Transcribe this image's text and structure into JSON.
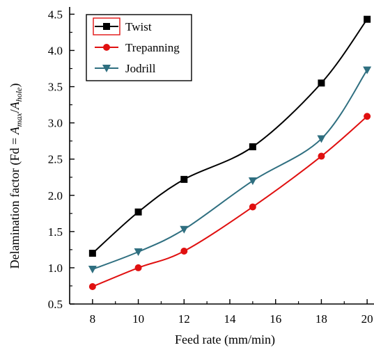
{
  "chart_data": {
    "type": "line",
    "title": "",
    "xlabel": "Feed rate (mm/min)",
    "ylabel": {
      "prefix": "Delamination factor (Fd = ",
      "a1": "A",
      "sub1": "max",
      "slash": "/",
      "a2": "A",
      "sub2": "hole",
      "suffix": ")"
    },
    "xlim": [
      7,
      20.3
    ],
    "ylim": [
      0.5,
      4.6
    ],
    "xticks": [
      8,
      10,
      12,
      14,
      16,
      18,
      20
    ],
    "yticks": [
      0.5,
      1.0,
      1.5,
      2.0,
      2.5,
      3.0,
      3.5,
      4.0,
      4.5
    ],
    "ytick_labels": [
      "0.5",
      "1.0",
      "1.5",
      "2.0",
      "2.5",
      "3.0",
      "3.5",
      "4.0",
      "4.5"
    ],
    "legend_position": "top-left",
    "x": [
      8,
      10,
      12,
      15,
      18,
      20
    ],
    "series": [
      {
        "name": "Twist",
        "values": [
          1.2,
          1.77,
          2.22,
          2.67,
          3.55,
          4.43
        ],
        "color": "#000000",
        "marker": "square"
      },
      {
        "name": "Trepanning",
        "values": [
          0.74,
          1.0,
          1.23,
          1.84,
          2.54,
          3.09
        ],
        "color": "#e01010",
        "marker": "circle"
      },
      {
        "name": "Jodrill",
        "values": [
          0.98,
          1.22,
          1.53,
          2.2,
          2.78,
          3.73
        ],
        "color": "#2f6f80",
        "marker": "triangle-down"
      }
    ]
  }
}
